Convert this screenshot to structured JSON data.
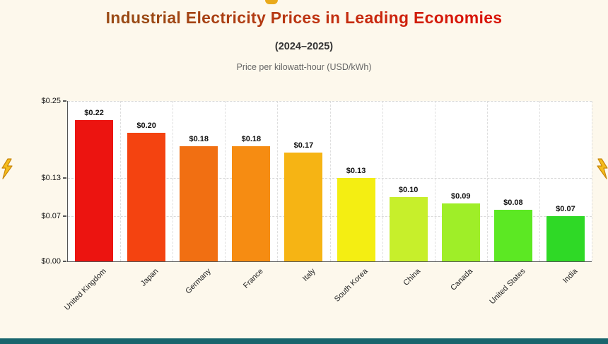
{
  "page": {
    "background_color": "#fdf8ec",
    "footer_bar_color": "#19656d",
    "bolt_color": "#f5bd1c",
    "bolt_outline_color": "#c8860a"
  },
  "header": {
    "title": "Industrial Electricity Prices in Leading Economies",
    "subtitle": "(2024–2025)",
    "caption": "Price per kilowatt-hour (USD/kWh)"
  },
  "chart_data": {
    "type": "bar",
    "title": "Industrial Electricity Prices in Leading Economies",
    "subtitle": "(2024–2025)",
    "ylabel": "Price per kilowatt-hour (USD/kWh)",
    "xlabel": "",
    "categories": [
      "United Kingdom",
      "Japan",
      "Germany",
      "France",
      "Italy",
      "South Korea",
      "China",
      "Canada",
      "United States",
      "India"
    ],
    "values": [
      0.22,
      0.2,
      0.18,
      0.18,
      0.17,
      0.13,
      0.1,
      0.09,
      0.08,
      0.07
    ],
    "value_labels": [
      "$0.22",
      "$0.20",
      "$0.18",
      "$0.18",
      "$0.17",
      "$0.13",
      "$0.10",
      "$0.09",
      "$0.08",
      "$0.07"
    ],
    "bar_colors": [
      "#ec1410",
      "#f44310",
      "#f16f12",
      "#f68c12",
      "#f6b414",
      "#f4ee12",
      "#c7ef2b",
      "#9fee28",
      "#5ce823",
      "#2fd926"
    ],
    "y_ticks": [
      {
        "value": 0.25,
        "label": "$0.25"
      },
      {
        "value": 0.13,
        "label": "$0.13"
      },
      {
        "value": 0.07,
        "label": "$0.07"
      },
      {
        "value": 0.0,
        "label": "$0.00"
      }
    ],
    "ylim": [
      0,
      0.25
    ],
    "grid": true,
    "legend": "none"
  }
}
